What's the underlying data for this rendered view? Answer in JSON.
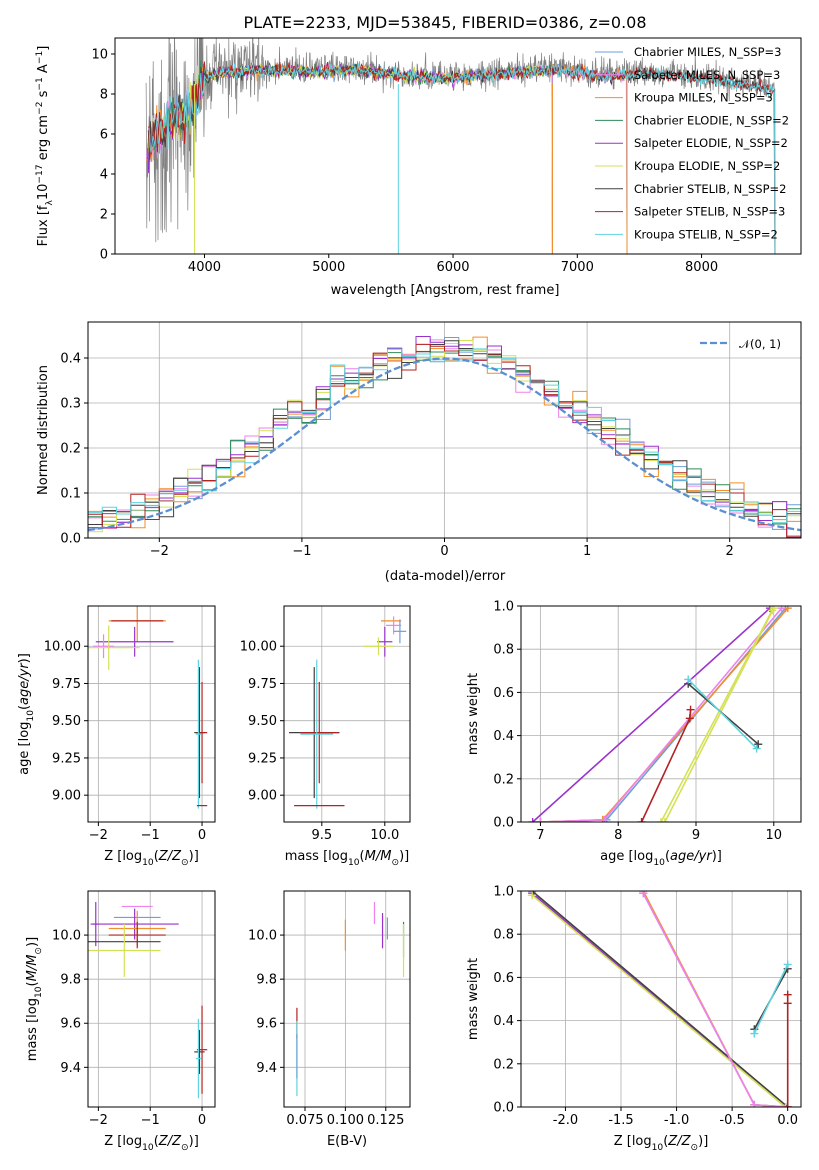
{
  "chart_data": [
    {
      "id": "spectrum",
      "type": "line",
      "title": "PLATE=2233, MJD=53845, FIBERID=0386, z=0.08",
      "xlabel": "wavelength [Angstrom, rest frame]",
      "ylabel": "Flux [f_λ 10^-17 erg cm^-2 s^-1 A^-1]",
      "xlim": [
        3280,
        8800
      ],
      "ylim": [
        0,
        10.8
      ],
      "xticks": [
        4000,
        5000,
        6000,
        7000,
        8000
      ],
      "yticks": [
        0,
        2,
        4,
        6,
        8,
        10
      ],
      "data_series": {
        "name": "data",
        "color": "#808080",
        "range": [
          3530,
          8590
        ]
      },
      "continuum": [
        [
          3550,
          5.6
        ],
        [
          3700,
          6.6
        ],
        [
          3900,
          7.4
        ],
        [
          4000,
          8.9
        ],
        [
          4100,
          9.1
        ],
        [
          4400,
          9.3
        ],
        [
          4800,
          9.2
        ],
        [
          5200,
          9.3
        ],
        [
          5600,
          9.0
        ],
        [
          6000,
          8.9
        ],
        [
          6400,
          9.1
        ],
        [
          6800,
          9.3
        ],
        [
          7200,
          9.0
        ],
        [
          7600,
          9.1
        ],
        [
          8000,
          8.9
        ],
        [
          8300,
          8.6
        ],
        [
          8590,
          8.3
        ]
      ],
      "grid": false,
      "legend_position": "upper-right",
      "series": [
        {
          "name": "Chabrier MILES, N_SSP=3",
          "color": "#6f9fd8",
          "end": 7400
        },
        {
          "name": "Salpeter MILES, N_SSP=3",
          "color": "#ee82ee",
          "end": 7400
        },
        {
          "name": "Kroupa MILES, N_SSP=3",
          "color": "#f28e2b",
          "end": 7400
        },
        {
          "name": "Chabrier ELODIE, N_SSP=2",
          "color": "#2e8b57",
          "end": 6800
        },
        {
          "name": "Salpeter ELODIE, N_SSP=2",
          "color": "#9932cc",
          "end": 6800
        },
        {
          "name": "Kroupa ELODIE, N_SSP=2",
          "color": "#d4e157",
          "end": 6800
        },
        {
          "name": "Chabrier STELIB, N_SSP=2",
          "color": "#404040",
          "end": 8590
        },
        {
          "name": "Salpeter STELIB, N_SSP=3",
          "color": "#b22222",
          "end": 8590
        },
        {
          "name": "Kroupa STELIB, N_SSP=2",
          "color": "#5fd3e0",
          "end": 8590
        }
      ],
      "vertical_drops": [
        3920,
        5560,
        6800,
        7400
      ]
    },
    {
      "id": "residuals",
      "type": "line",
      "xlabel": "(data-model)/error",
      "ylabel": "Normed distribution",
      "xlim": [
        -2.5,
        2.5
      ],
      "ylim": [
        0,
        0.48
      ],
      "xticks": [
        -2,
        -1,
        0,
        1,
        2
      ],
      "yticks": [
        0.0,
        0.1,
        0.2,
        0.3,
        0.4
      ],
      "grid": true,
      "legend_position": "upper-right",
      "legend": {
        "name": "𝒩(0, 1)",
        "color": "#5b8fd0"
      },
      "bins": 50,
      "colors": [
        "#6f9fd8",
        "#ee82ee",
        "#f28e2b",
        "#2e8b57",
        "#9932cc",
        "#d4e157",
        "#404040",
        "#b22222",
        "#5fd3e0"
      ]
    },
    {
      "id": "age_vs_Z",
      "type": "scatter",
      "xlabel": "Z [log10(Z/Z☉)]",
      "ylabel": "age  [log10(age/yr)]",
      "xlim": [
        -2.2,
        0.25
      ],
      "ylim": [
        8.82,
        10.27
      ],
      "xticks": [
        -2,
        -1,
        0
      ],
      "yticks": [
        9.0,
        9.25,
        9.5,
        9.75,
        10.0
      ],
      "grid": true,
      "points": [
        {
          "x": -1.25,
          "y": 10.17,
          "xerr": 0.55,
          "yerr": 0.14,
          "color": "#f28e2b"
        },
        {
          "x": -1.25,
          "y": 10.17,
          "xerr": 0.5,
          "yerr": 0.0,
          "color": "#b22222"
        },
        {
          "x": -1.3,
          "y": 10.03,
          "xerr": 0.75,
          "yerr": 0.1,
          "color": "#9932cc"
        },
        {
          "x": -1.9,
          "y": 10.0,
          "xerr": 0.2,
          "yerr": 0.08,
          "color": "#ee82ee"
        },
        {
          "x": -1.8,
          "y": 9.99,
          "xerr": 0.6,
          "yerr": 0.15,
          "color": "#d4e157"
        },
        {
          "x": -0.05,
          "y": 9.42,
          "xerr": 0.1,
          "yerr": 0.44,
          "color": "#404040"
        },
        {
          "x": 0.0,
          "y": 9.42,
          "xerr": 0.1,
          "yerr": 0.34,
          "color": "#b22222"
        },
        {
          "x": -0.07,
          "y": 9.41,
          "xerr": 0.05,
          "yerr": 0.5,
          "color": "#5fd3e0"
        },
        {
          "x": 0.0,
          "y": 8.93,
          "xerr": 0.1,
          "yerr": 0.0,
          "color": "#b22222"
        }
      ]
    },
    {
      "id": "age_vs_mass",
      "type": "scatter",
      "xlabel": "mass [log10(M/M☉)]",
      "ylabel": "",
      "xlim": [
        9.2,
        10.2
      ],
      "ylim": [
        8.82,
        10.27
      ],
      "xticks": [
        9.5,
        10.0
      ],
      "yticks": [
        9.0,
        9.25,
        9.5,
        9.75,
        10.0
      ],
      "grid": true,
      "points": [
        {
          "x": 10.05,
          "y": 10.17,
          "xerr": 0.08,
          "yerr": 0.0,
          "color": "#f28e2b"
        },
        {
          "x": 10.07,
          "y": 10.14,
          "xerr": 0.06,
          "yerr": 0.06,
          "color": "#ee82ee"
        },
        {
          "x": 10.0,
          "y": 10.03,
          "xerr": 0.06,
          "yerr": 0.1,
          "color": "#9932cc"
        },
        {
          "x": 9.95,
          "y": 10.0,
          "xerr": 0.12,
          "yerr": 0.06,
          "color": "#d4e157"
        },
        {
          "x": 10.12,
          "y": 10.1,
          "xerr": 0.05,
          "yerr": 0.08,
          "color": "#6f9fd8"
        },
        {
          "x": 9.44,
          "y": 9.42,
          "xerr": 0.2,
          "yerr": 0.44,
          "color": "#404040"
        },
        {
          "x": 9.48,
          "y": 9.42,
          "xerr": 0.15,
          "yerr": 0.34,
          "color": "#b22222"
        },
        {
          "x": 9.46,
          "y": 9.41,
          "xerr": 0.13,
          "yerr": 0.5,
          "color": "#5fd3e0"
        },
        {
          "x": 9.48,
          "y": 8.93,
          "xerr": 0.2,
          "yerr": 0.0,
          "color": "#b22222"
        }
      ]
    },
    {
      "id": "weight_vs_age",
      "type": "line",
      "xlabel": "age  [log10(age/yr)]",
      "ylabel": "mass weight",
      "xlim": [
        6.75,
        10.35
      ],
      "ylim": [
        0,
        1
      ],
      "xticks": [
        7,
        8,
        9,
        10
      ],
      "yticks": [
        0.0,
        0.2,
        0.4,
        0.6,
        0.8,
        1.0
      ],
      "grid": true,
      "series": [
        {
          "color": "#9932cc",
          "points": [
            [
              6.9,
              0.0
            ],
            [
              9.95,
              0.99
            ]
          ]
        },
        {
          "color": "#6f9fd8",
          "points": [
            [
              7.0,
              0.0
            ],
            [
              7.85,
              0.01
            ],
            [
              10.15,
              0.99
            ]
          ]
        },
        {
          "color": "#f28e2b",
          "points": [
            [
              7.0,
              0.0
            ],
            [
              7.8,
              0.01
            ],
            [
              10.18,
              0.99
            ]
          ]
        },
        {
          "color": "#ee82ee",
          "points": [
            [
              7.0,
              0.0
            ],
            [
              7.82,
              0.01
            ],
            [
              10.1,
              0.99
            ]
          ]
        },
        {
          "color": "#d4e157",
          "points": [
            [
              8.6,
              0.0
            ],
            [
              10.0,
              0.99
            ]
          ]
        },
        {
          "color": "#d4e157",
          "points": [
            [
              8.55,
              0.0
            ],
            [
              9.98,
              0.98
            ]
          ]
        },
        {
          "color": "#b22222",
          "points": [
            [
              8.3,
              0.0
            ],
            [
              8.92,
              0.48
            ],
            [
              8.93,
              0.52
            ]
          ]
        },
        {
          "color": "#404040",
          "points": [
            [
              8.9,
              0.64
            ],
            [
              9.8,
              0.36
            ]
          ]
        },
        {
          "color": "#5fd3e0",
          "points": [
            [
              8.9,
              0.66
            ],
            [
              9.78,
              0.34
            ]
          ]
        }
      ]
    },
    {
      "id": "mass_vs_Z",
      "type": "scatter",
      "xlabel": "Z [log10(Z/Z☉)]",
      "ylabel": "mass [log10(M/M☉)]",
      "xlim": [
        -2.2,
        0.25
      ],
      "ylim": [
        9.22,
        10.2
      ],
      "xticks": [
        -2,
        -1,
        0
      ],
      "yticks": [
        9.4,
        9.6,
        9.8,
        10.0
      ],
      "grid": true,
      "points": [
        {
          "x": -1.25,
          "y": 10.13,
          "xerr": 0.3,
          "yerr": 0.0,
          "color": "#ee82ee"
        },
        {
          "x": -1.25,
          "y": 10.08,
          "xerr": 0.45,
          "yerr": 0.0,
          "color": "#6f9fd8"
        },
        {
          "x": -1.3,
          "y": 10.05,
          "xerr": 0.85,
          "yerr": 0.07,
          "color": "#9932cc"
        },
        {
          "x": -1.25,
          "y": 10.03,
          "xerr": 0.55,
          "yerr": 0.08,
          "color": "#f28e2b"
        },
        {
          "x": -1.25,
          "y": 10.0,
          "xerr": 0.55,
          "yerr": 0.06,
          "color": "#b22222"
        },
        {
          "x": -2.05,
          "y": 10.05,
          "xerr": 0.05,
          "yerr": 0.1,
          "color": "#9932cc"
        },
        {
          "x": -1.5,
          "y": 9.97,
          "xerr": 0.7,
          "yerr": 0.0,
          "color": "#404040"
        },
        {
          "x": -1.5,
          "y": 9.93,
          "xerr": 0.7,
          "yerr": 0.12,
          "color": "#d4e157"
        },
        {
          "x": -0.05,
          "y": 9.47,
          "xerr": 0.1,
          "yerr": 0.1,
          "color": "#404040"
        },
        {
          "x": 0.0,
          "y": 9.48,
          "xerr": 0.1,
          "yerr": 0.2,
          "color": "#b22222"
        },
        {
          "x": -0.07,
          "y": 9.44,
          "xerr": 0.05,
          "yerr": 0.18,
          "color": "#5fd3e0"
        }
      ]
    },
    {
      "id": "mass_vs_ebv",
      "type": "scatter",
      "xlabel": "E(B-V)",
      "ylabel": "",
      "xlim": [
        0.062,
        0.14
      ],
      "ylim": [
        9.22,
        10.2
      ],
      "xticks": [
        0.075,
        0.1,
        0.125
      ],
      "yticks": [
        9.4,
        9.6,
        9.8,
        10.0
      ],
      "grid": true,
      "points": [
        {
          "x": 0.118,
          "y": 10.1,
          "xerr": 0.0,
          "yerr": 0.05,
          "color": "#ee82ee"
        },
        {
          "x": 0.1,
          "y": 10.0,
          "xerr": 0.0,
          "yerr": 0.07,
          "color": "#f28e2b"
        },
        {
          "x": 0.123,
          "y": 10.02,
          "xerr": 0.0,
          "yerr": 0.08,
          "color": "#9932cc"
        },
        {
          "x": 0.126,
          "y": 10.03,
          "xerr": 0.0,
          "yerr": 0.05,
          "color": "#6f9fd8"
        },
        {
          "x": 0.136,
          "y": 9.98,
          "xerr": 0.0,
          "yerr": 0.08,
          "color": "#2e8b57"
        },
        {
          "x": 0.136,
          "y": 9.93,
          "xerr": 0.0,
          "yerr": 0.12,
          "color": "#d4e157"
        },
        {
          "x": 0.07,
          "y": 9.6,
          "xerr": 0.0,
          "yerr": 0.07,
          "color": "#b22222"
        },
        {
          "x": 0.07,
          "y": 9.44,
          "xerr": 0.0,
          "yerr": 0.17,
          "color": "#5fd3e0"
        },
        {
          "x": 0.07,
          "y": 9.45,
          "xerr": 0.0,
          "yerr": 0.1,
          "color": "#6f9fd8"
        }
      ]
    },
    {
      "id": "weight_vs_Z",
      "type": "line",
      "xlabel": "Z [log10(Z/Z☉)]",
      "ylabel": "mass weight",
      "xlim": [
        -2.4,
        0.12
      ],
      "ylim": [
        0,
        1
      ],
      "xticks": [
        -2.0,
        -1.5,
        -1.0,
        -0.5,
        0.0
      ],
      "yticks": [
        0.0,
        0.2,
        0.4,
        0.6,
        0.8,
        1.0
      ],
      "grid": true,
      "series": [
        {
          "color": "#9932cc",
          "points": [
            [
              -2.3,
              0.99
            ],
            [
              -0.02,
              0.0
            ]
          ]
        },
        {
          "color": "#404040",
          "points": [
            [
              -2.3,
              1.0
            ],
            [
              0.0,
              0.0
            ]
          ]
        },
        {
          "color": "#d4e157",
          "points": [
            [
              -2.3,
              0.98
            ],
            [
              -0.02,
              0.0
            ]
          ]
        },
        {
          "color": "#6f9fd8",
          "points": [
            [
              -1.3,
              0.99
            ],
            [
              -0.3,
              0.01
            ],
            [
              0.0,
              0.0
            ]
          ]
        },
        {
          "color": "#f28e2b",
          "points": [
            [
              -1.3,
              1.0
            ],
            [
              -0.3,
              0.01
            ],
            [
              0.0,
              0.0
            ]
          ]
        },
        {
          "color": "#ee82ee",
          "points": [
            [
              -1.3,
              0.99
            ],
            [
              -0.3,
              0.01
            ],
            [
              0.0,
              0.0
            ]
          ]
        },
        {
          "color": "#b22222",
          "points": [
            [
              0.0,
              0.0
            ],
            [
              0.0,
              0.48
            ],
            [
              0.0,
              0.52
            ]
          ]
        },
        {
          "color": "#404040",
          "points": [
            [
              -0.3,
              0.36
            ],
            [
              0.0,
              0.64
            ]
          ]
        },
        {
          "color": "#5fd3e0",
          "points": [
            [
              -0.3,
              0.34
            ],
            [
              0.0,
              0.66
            ]
          ]
        }
      ]
    }
  ]
}
